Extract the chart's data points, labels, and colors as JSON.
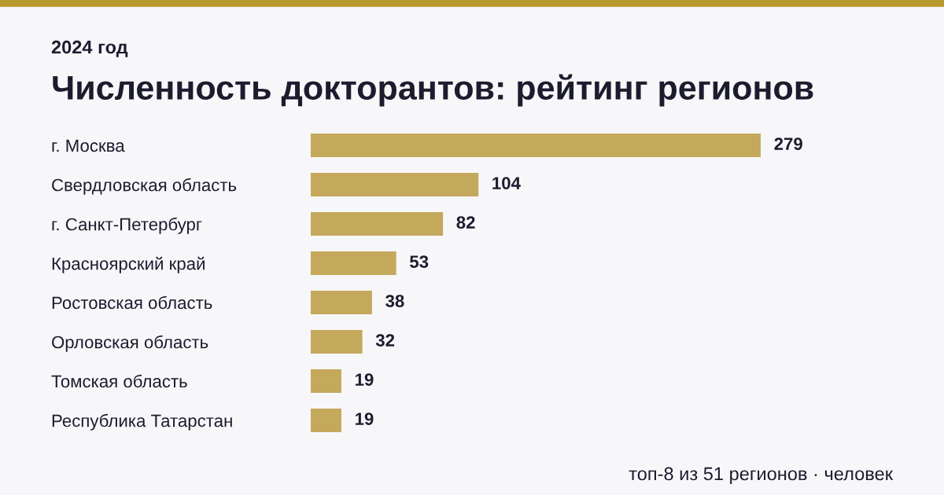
{
  "chart_data": {
    "type": "bar",
    "orientation": "horizontal",
    "title": "Численность докторантов: рейтинг регионов",
    "subtitle": "2024 год",
    "categories": [
      "г. Москва",
      "Свердловская область",
      "г. Санкт-Петербург",
      "Красноярский край",
      "Ростовская область",
      "Орловская область",
      "Томская область",
      "Республика Татарстан"
    ],
    "values": [
      279,
      104,
      82,
      53,
      38,
      32,
      19,
      19
    ],
    "color": "#c4a85c",
    "data_labels": true,
    "grid": false,
    "legend": false,
    "annotations": [
      "топ-8 из 51 регионов · человек"
    ]
  }
}
